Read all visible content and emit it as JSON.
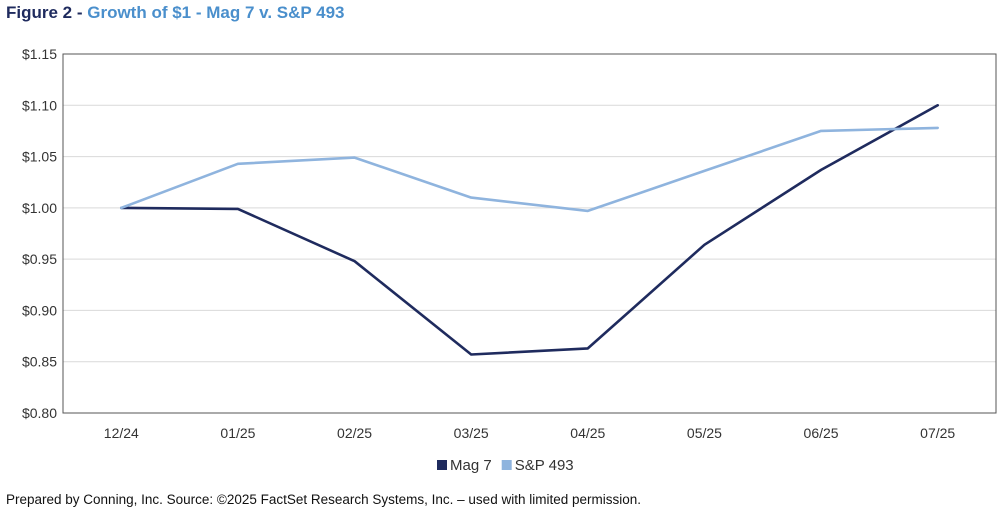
{
  "header": {
    "title_prefix": "Figure 2 - ",
    "title_rest": "Growth of $1 - Mag 7 v. S&P 493"
  },
  "footer": {
    "source": "Prepared by Conning, Inc. Source: ©2025 FactSet Research Systems, Inc. – used with limited permission."
  },
  "chart_data": {
    "type": "line",
    "title": "Growth of $1 - Mag 7 v. S&P 493",
    "xlabel": "",
    "ylabel": "",
    "categories": [
      "12/24",
      "01/25",
      "02/25",
      "03/25",
      "04/25",
      "05/25",
      "06/25",
      "07/25"
    ],
    "ylim": [
      0.8,
      1.15
    ],
    "yticks": [
      0.8,
      0.85,
      0.9,
      0.95,
      1.0,
      1.05,
      1.1,
      1.15
    ],
    "ytick_labels": [
      "$0.80",
      "$0.85",
      "$0.90",
      "$0.95",
      "$1.00",
      "$1.05",
      "$1.10",
      "$1.15"
    ],
    "grid": "horizontal",
    "legend": "bottom",
    "series": [
      {
        "name": "Mag 7",
        "color": "#1f2b5e",
        "values": [
          1.0,
          0.999,
          0.948,
          0.857,
          0.863,
          0.964,
          1.037,
          1.1
        ]
      },
      {
        "name": "S&P 493",
        "color": "#8fb4de",
        "values": [
          1.0,
          1.043,
          1.049,
          1.01,
          0.997,
          1.036,
          1.075,
          1.078
        ]
      }
    ]
  }
}
